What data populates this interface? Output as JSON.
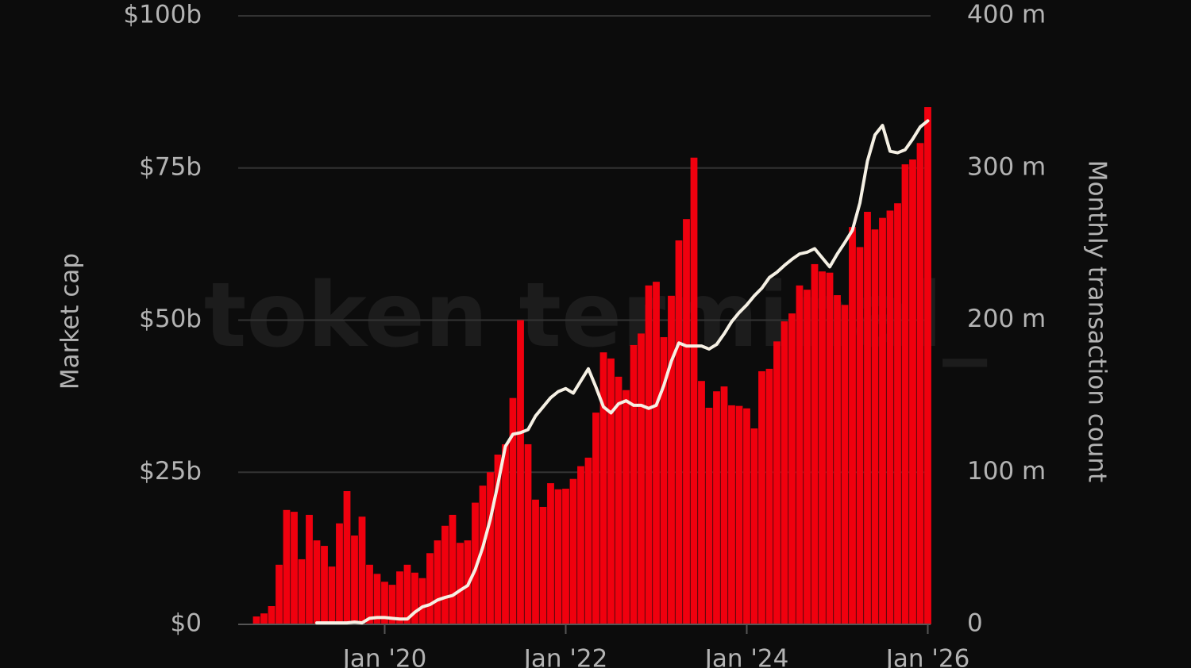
{
  "chart_data": {
    "type": "bar_line",
    "watermark": "token terminal_",
    "y_label": "Market cap",
    "y2_label": "Monthly transaction count",
    "categories": [
      null,
      null,
      null,
      null,
      null,
      null,
      null,
      null,
      null,
      null,
      null,
      null,
      null,
      null,
      null,
      null,
      null,
      "Jan '20",
      null,
      null,
      null,
      null,
      null,
      null,
      null,
      null,
      null,
      null,
      null,
      null,
      null,
      null,
      null,
      null,
      null,
      null,
      null,
      null,
      null,
      null,
      null,
      "Jan '22",
      null,
      null,
      null,
      null,
      null,
      null,
      null,
      null,
      null,
      null,
      null,
      null,
      null,
      null,
      null,
      null,
      null,
      null,
      null,
      null,
      null,
      null,
      null,
      "Jan '24",
      null,
      null,
      null,
      null,
      null,
      null,
      null,
      null,
      null,
      null,
      null,
      null,
      null,
      null,
      null,
      null,
      null,
      null,
      null,
      null,
      null,
      null,
      null,
      "Jan '26"
    ],
    "series": [
      {
        "color": "#f0000e",
        "axis": "y",
        "kind": "bar",
        "values": [
          1.3,
          1.8,
          3,
          9.8,
          18.8,
          18.5,
          10.7,
          18,
          13.8,
          12.9,
          9.5,
          16.6,
          21.9,
          14.6,
          17.7,
          9.8,
          8.3,
          7,
          6.5,
          8.7,
          9.8,
          8.5,
          7.6,
          11.7,
          13.8,
          16.2,
          18,
          13.4,
          13.8,
          20,
          22.8,
          25,
          27.9,
          29.6,
          37.2,
          50,
          29.6,
          20.5,
          19.3,
          23.2,
          22.2,
          22.3,
          23.9,
          26,
          27.4,
          34.8,
          44.7,
          43.7,
          40.7,
          38.5,
          45.9,
          47.8,
          55.7,
          56.3,
          47.2,
          54,
          63.1,
          66.6,
          76.7,
          40,
          35.6,
          38.3,
          39.1,
          36,
          35.9,
          35.5,
          32.2,
          41.6,
          42,
          46.5,
          49.8,
          51.1,
          55.7,
          55,
          59.2,
          58,
          57.8,
          54.1,
          52.5,
          65.3,
          62,
          67.8,
          64.9,
          66.8,
          68,
          69.2,
          75.6,
          76.4,
          79.1,
          85
        ]
      },
      {
        "color": "#f5f0e4",
        "axis": "y2",
        "kind": "line",
        "values": [
          null,
          null,
          null,
          null,
          null,
          null,
          null,
          null,
          1,
          1,
          1,
          1,
          1,
          1.5,
          1,
          4,
          4.5,
          4.5,
          4,
          3.5,
          3.5,
          8,
          11.5,
          13,
          16,
          17.7,
          19,
          22.4,
          25.5,
          36,
          50.6,
          69,
          92,
          117,
          125,
          126,
          128,
          137,
          143,
          149,
          153,
          155,
          152,
          160,
          168,
          156,
          143,
          139,
          145,
          147,
          144,
          144,
          142,
          144,
          157,
          173,
          185,
          183,
          183,
          183,
          181,
          184,
          191,
          199,
          205,
          210,
          216,
          221,
          228,
          231.5,
          236,
          240,
          243.5,
          244.6,
          247,
          241,
          235,
          243.5,
          251,
          259,
          277,
          304.6,
          321.8,
          328,
          311,
          310,
          312,
          319,
          327,
          331
        ]
      }
    ],
    "ylim": [
      0,
      100
    ],
    "yticks": [
      {
        "value": 0,
        "label": "$0"
      },
      {
        "value": 25,
        "label": "$25b"
      },
      {
        "value": 50,
        "label": "$50b"
      },
      {
        "value": 75,
        "label": "$75b"
      },
      {
        "value": 100,
        "label": "$100b"
      }
    ],
    "y2lim": [
      0,
      400
    ],
    "y2ticks": [
      0,
      {
        "value": 100,
        "label": "100 m"
      },
      {
        "value": 200,
        "label": "200 m"
      },
      {
        "value": 300,
        "label": "300 m"
      },
      {
        "value": 400,
        "label": "400 m"
      }
    ],
    "grid": true
  }
}
